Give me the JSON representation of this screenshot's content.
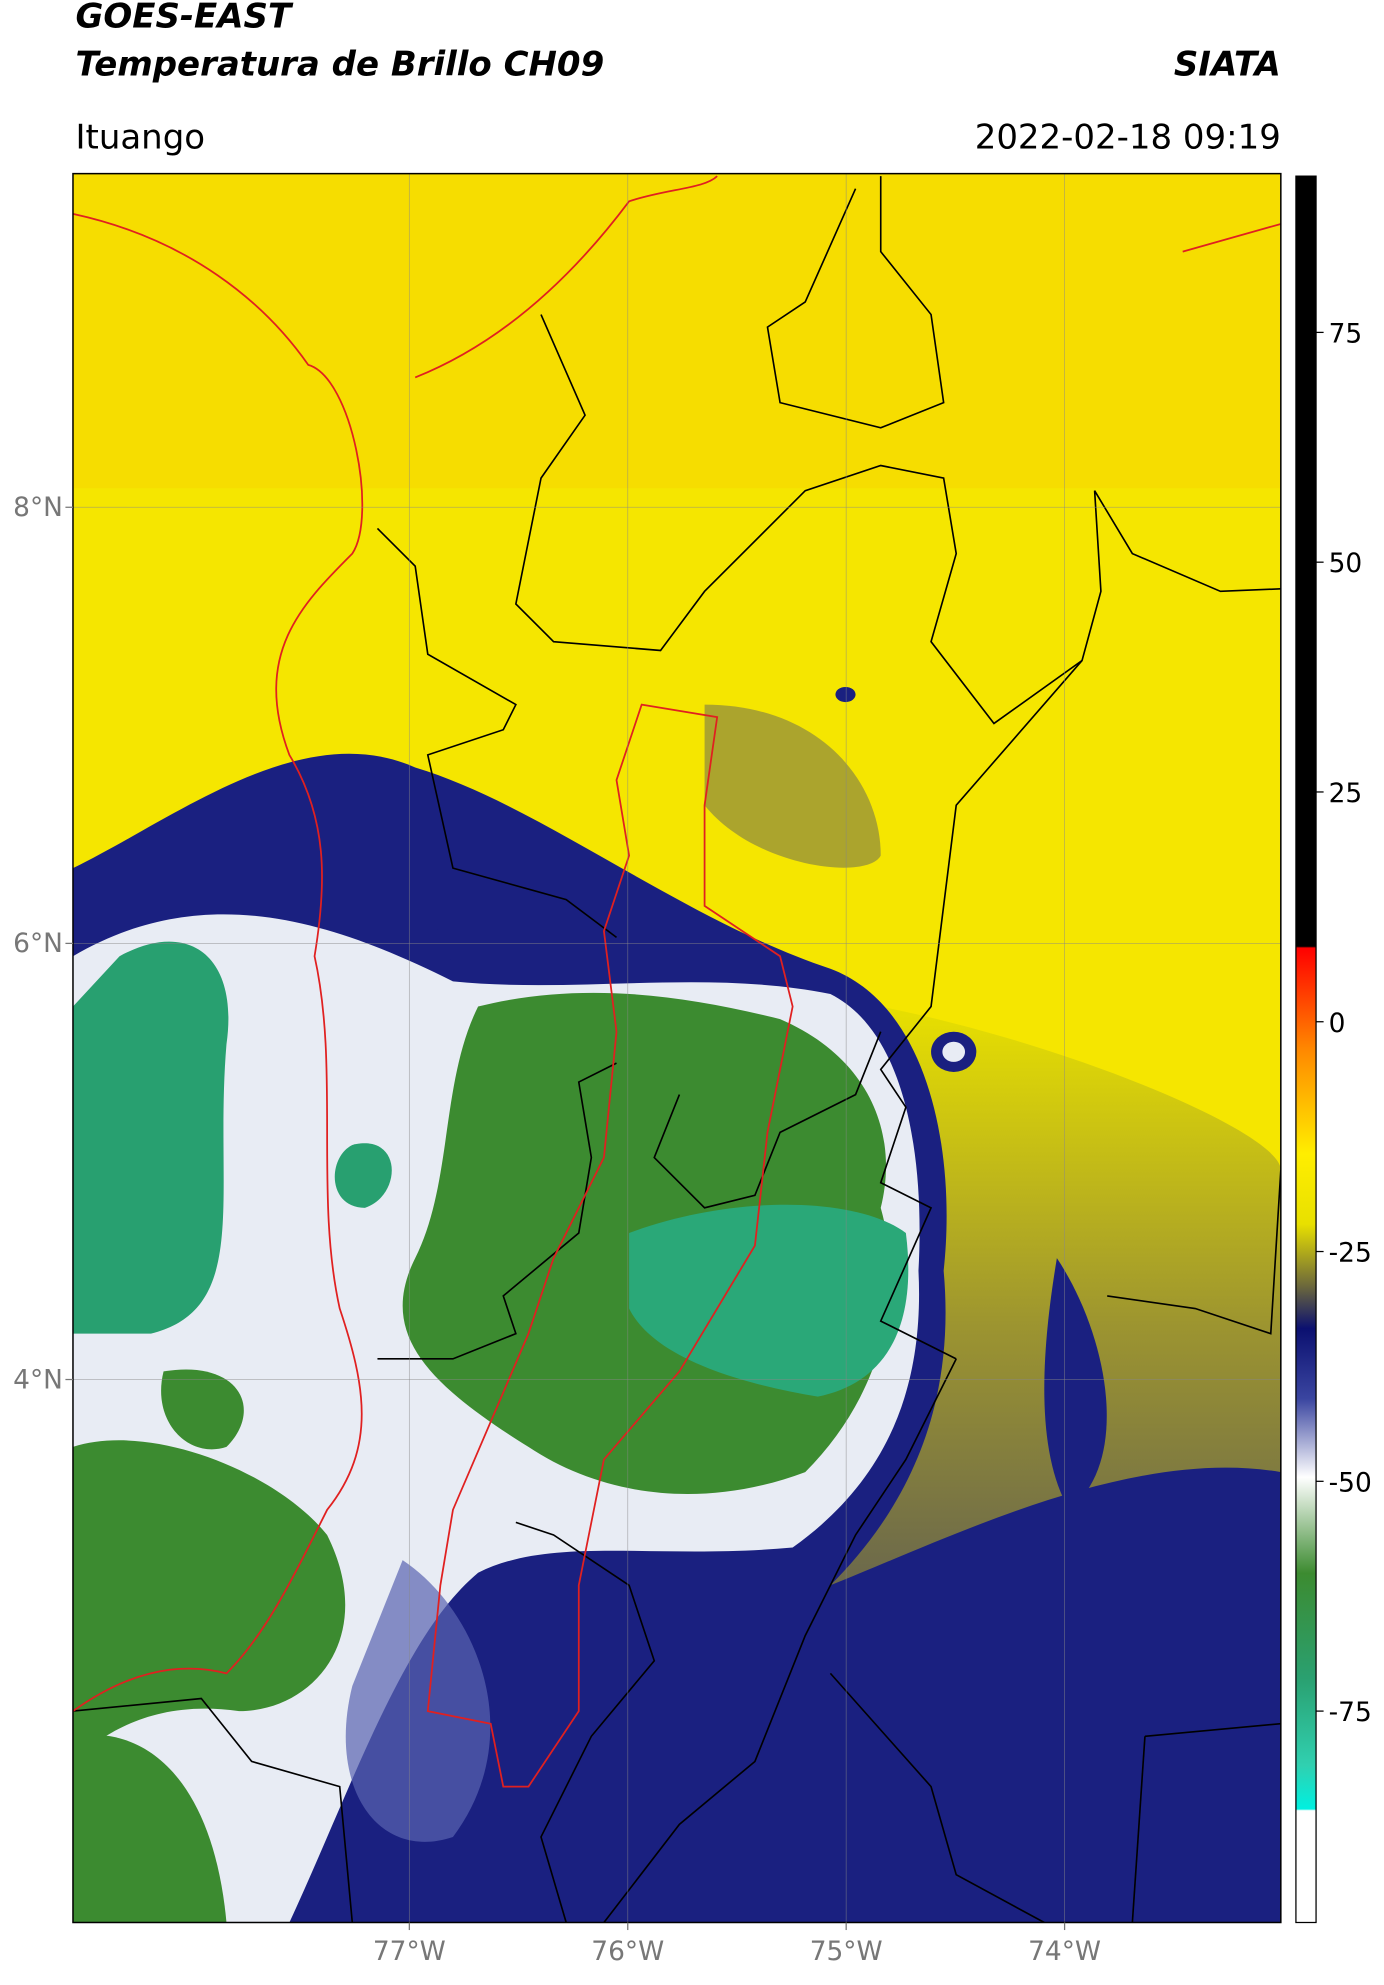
{
  "header": {
    "title_line1": "GOES-EAST",
    "title_line2": "Temperatura de Brillo CH09",
    "brand": "SIATA",
    "region": "Ituango",
    "datetime": "2022-02-18 09:19"
  },
  "map": {
    "xlim": [
      -78.54,
      -73.01
    ],
    "ylim": [
      1.51,
      9.53
    ],
    "xticks": [
      {
        "value": -77,
        "label": "77°W"
      },
      {
        "value": -76,
        "label": "76°W"
      },
      {
        "value": -75,
        "label": "75°W"
      },
      {
        "value": -74,
        "label": "74°W"
      }
    ],
    "yticks": [
      {
        "value": 8,
        "label": "8°N"
      },
      {
        "value": 6,
        "label": "6°N"
      },
      {
        "value": 4,
        "label": "4°N"
      }
    ],
    "grid": true
  },
  "colorbar": {
    "ylim": [
      -98,
      92
    ],
    "yticks": [
      75,
      50,
      25,
      0,
      -25,
      -50,
      -75
    ]
  }
}
